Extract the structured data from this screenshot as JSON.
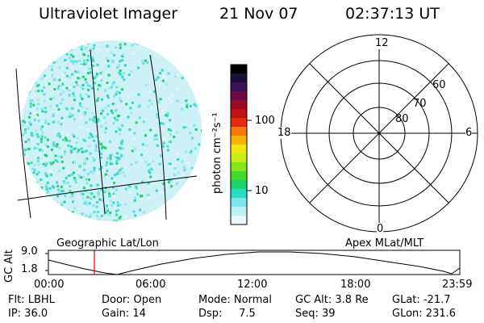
{
  "header": {
    "instrument": "Ultraviolet Imager",
    "date": "21 Nov 07",
    "time": "02:37:13 UT"
  },
  "colorbar": {
    "unit_label": "photon cm⁻²s⁻¹",
    "ticks": [
      "100",
      "10"
    ],
    "colors": [
      "#000000",
      "#1a0f3c",
      "#3b0f55",
      "#6e0a47",
      "#9c0a2a",
      "#c40f16",
      "#e32a0c",
      "#f7780c",
      "#f9b20b",
      "#efe611",
      "#c7ef16",
      "#86e81a",
      "#3fdc29",
      "#1fd46b",
      "#28dcc0",
      "#7ce6ee",
      "#bdf0f5",
      "#e8f6f8"
    ]
  },
  "polar": {
    "labels": {
      "top": "12",
      "left": "18",
      "right": "6",
      "bottom": "0",
      "lat60": "60",
      "lat70": "70",
      "lat80": "80"
    }
  },
  "timeline": {
    "left_label": "Geographic Lat/Lon",
    "right_label": "Apex MLat/MLT",
    "axis_title": "GC Alt",
    "y_ticks": [
      "9.0",
      "1.8"
    ],
    "x_ticks": [
      "00:00",
      "06:00",
      "12:00",
      "18:00",
      "23:59"
    ],
    "marker_color": "#e00000"
  },
  "info": {
    "flt": "Flt: LBHL",
    "ip": "IP: 36.0",
    "door": "Door: Open",
    "gain": "Gain: 14",
    "mode": "Mode: Normal",
    "dsp": "Dsp:     7.5",
    "gc_alt": "GC Alt: 3.8 Re",
    "seq": "Seq: 39",
    "glat": "GLat: -21.7",
    "glon": "GLon: 231.6"
  }
}
